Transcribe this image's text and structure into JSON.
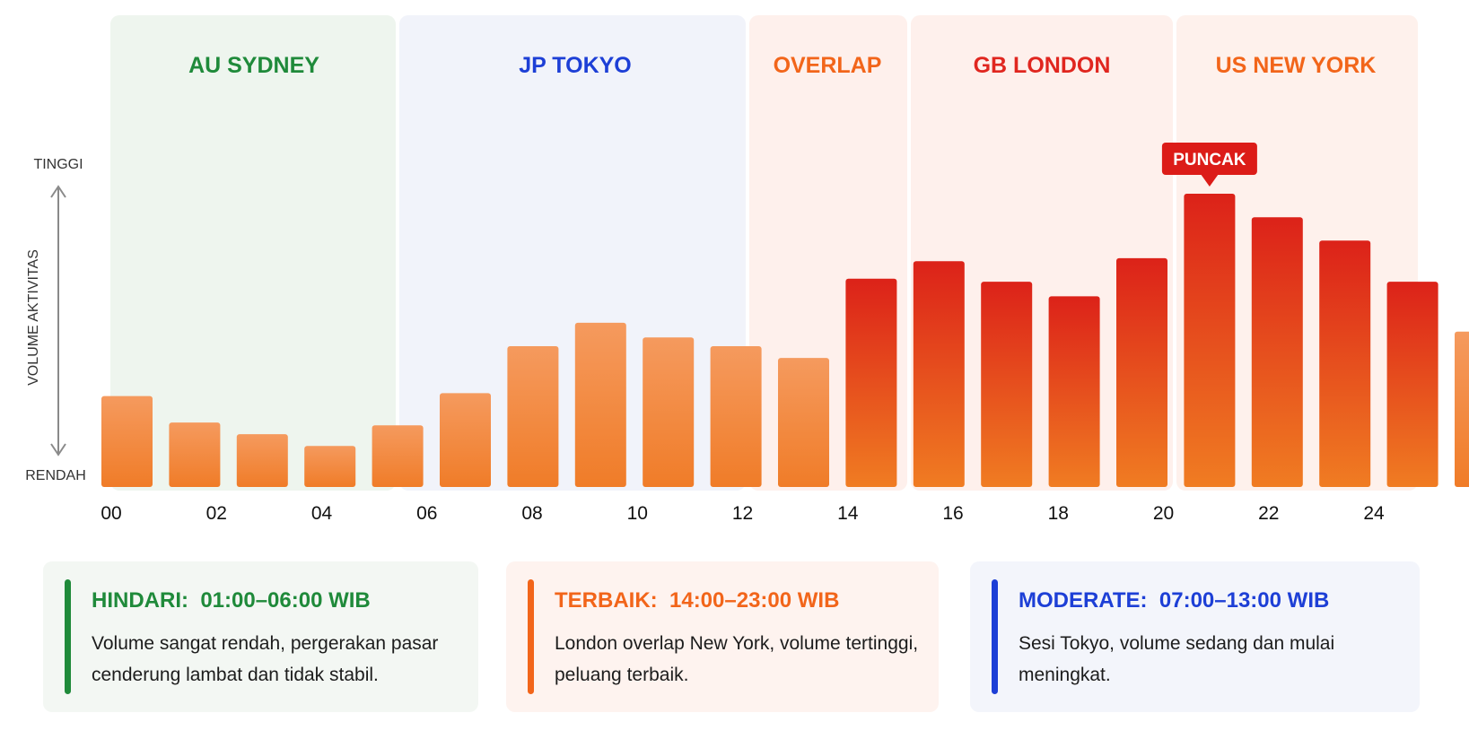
{
  "chart_data": {
    "type": "bar",
    "ylabel": "VOLUME AKTIVITAS",
    "y_high_label": "TINGGI",
    "y_low_label": "RENDAH",
    "ylim": [
      0,
      100
    ],
    "x_ticks": [
      "00",
      "02",
      "04",
      "06",
      "08",
      "10",
      "12",
      "14",
      "16",
      "18",
      "20",
      "22",
      "24"
    ],
    "hours": [
      0,
      1,
      2,
      3,
      4,
      5,
      6,
      7,
      8,
      9,
      10,
      11,
      12,
      13,
      14,
      15,
      16,
      17,
      18,
      19,
      20
    ],
    "values": [
      31,
      22,
      18,
      14,
      21,
      32,
      48,
      56,
      51,
      48,
      44,
      71,
      77,
      70,
      65,
      78,
      100,
      92,
      84,
      70,
      53
    ],
    "sessions": [
      {
        "label": "AU SYDNEY",
        "color": "#1f8a3a",
        "bg": "#eef5ee"
      },
      {
        "label": "JP TOKYO",
        "color": "#1d3fd6",
        "bg": "#f1f3fa"
      },
      {
        "label": "OVERLAP",
        "color": "#f2651a",
        "bg": "#fef0ec"
      },
      {
        "label": "GB LONDON",
        "color": "#e0261f",
        "bg": "#fef0ec"
      },
      {
        "label": "US NEW YORK",
        "color": "#f2651a",
        "bg": "#fef1ec"
      }
    ],
    "peak_label": "PUNCAK",
    "peak_index": 16,
    "bar_color_low": "#f5a06a",
    "bar_color_mid": "#f07a2a",
    "bar_color_high": "#dc1c18"
  },
  "cards": [
    {
      "title": "HINDARI:  01:00–06:00 WIB",
      "desc": "Volume sangat rendah, pergerakan pasar cenderung lambat dan tidak stabil.",
      "color": "#1f8a3a",
      "bg": "#f3f7f3"
    },
    {
      "title": "TERBAIK:  14:00–23:00 WIB",
      "desc": "London overlap New York, volume tertinggi, peluang terbaik.",
      "color": "#f2651a",
      "bg": "#fef3ef"
    },
    {
      "title": "MODERATE:  07:00–13:00 WIB",
      "desc": "Sesi Tokyo, volume sedang dan mulai meningkat.",
      "color": "#1d3fd6",
      "bg": "#f3f5fb"
    }
  ]
}
